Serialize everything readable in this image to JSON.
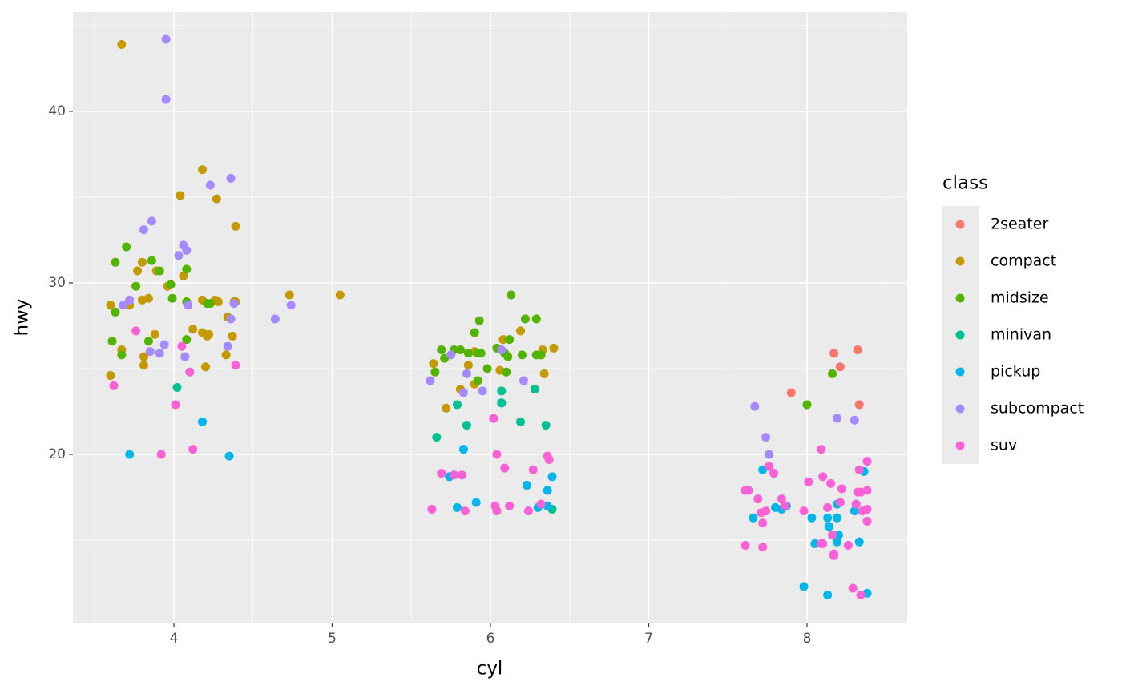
{
  "chart_data": {
    "type": "scatter",
    "x_label": "cyl",
    "y_label": "hwy",
    "legend_title": "class",
    "legend_position": "right",
    "grid": true,
    "xlim": [
      3.362,
      8.633
    ],
    "ylim": [
      10.19,
      45.79
    ],
    "xticks": [
      4,
      5,
      6,
      7,
      8
    ],
    "yticks": [
      20,
      30,
      40
    ],
    "xminor_ticks": [
      3.5,
      4.5,
      5.5,
      6.5,
      7.5,
      8.5
    ],
    "yminor_ticks": [
      15,
      25,
      35,
      45
    ],
    "series": [
      {
        "name": "2seater",
        "color": "#F8766D",
        "x": [
          7.9,
          8.17,
          8.21,
          8.32,
          8.33
        ],
        "values": [
          23.6,
          25.9,
          25.1,
          26.1,
          22.9
        ]
      },
      {
        "name": "compact",
        "color": "#C49A00",
        "x": [
          3.67,
          3.6,
          3.6,
          3.67,
          3.72,
          3.77,
          3.8,
          3.8,
          3.81,
          3.81,
          3.84,
          3.88,
          3.89,
          3.96,
          4.04,
          4.06,
          4.12,
          4.18,
          4.18,
          4.18,
          4.2,
          4.21,
          4.22,
          4.26,
          4.27,
          4.28,
          4.33,
          4.34,
          4.37,
          4.38,
          4.39,
          4.39,
          4.73,
          5.05,
          5.64,
          5.72,
          5.81,
          5.86,
          5.9,
          5.9,
          6.06,
          6.08,
          6.19,
          6.33,
          6.34,
          6.4
        ],
        "values": [
          43.9,
          28.7,
          24.6,
          26.1,
          28.7,
          30.7,
          31.2,
          29.0,
          25.7,
          25.2,
          29.1,
          27.0,
          30.7,
          29.8,
          35.1,
          30.4,
          27.3,
          36.6,
          29.0,
          27.1,
          25.1,
          26.9,
          27.0,
          29.0,
          34.9,
          28.9,
          25.8,
          28.0,
          26.9,
          28.9,
          33.3,
          28.9,
          29.3,
          29.3,
          25.3,
          22.7,
          23.8,
          25.2,
          24.1,
          26.0,
          24.9,
          26.7,
          27.2,
          26.1,
          24.7,
          26.2
        ]
      },
      {
        "name": "midsize",
        "color": "#53B400",
        "x": [
          3.63,
          3.61,
          3.63,
          3.67,
          3.7,
          3.76,
          3.84,
          3.86,
          3.91,
          3.98,
          3.99,
          4.08,
          4.08,
          4.08,
          4.21,
          4.23,
          5.65,
          5.69,
          5.71,
          5.77,
          5.81,
          5.86,
          5.9,
          5.92,
          5.92,
          5.93,
          5.94,
          5.98,
          6.04,
          6.09,
          6.1,
          6.11,
          6.12,
          6.13,
          6.2,
          6.22,
          6.29,
          6.29,
          6.32,
          8.0,
          8.16
        ],
        "values": [
          31.2,
          26.6,
          28.3,
          25.8,
          32.1,
          29.8,
          26.6,
          31.3,
          30.7,
          29.9,
          29.1,
          30.8,
          26.7,
          28.9,
          28.8,
          28.8,
          24.8,
          26.1,
          25.6,
          26.1,
          26.1,
          25.9,
          27.1,
          25.9,
          24.3,
          27.8,
          25.9,
          25.0,
          26.2,
          25.9,
          24.8,
          25.7,
          26.7,
          29.3,
          25.8,
          27.9,
          27.9,
          25.8,
          25.8,
          22.9,
          24.7
        ]
      },
      {
        "name": "minivan",
        "color": "#00C094",
        "x": [
          4.02,
          5.66,
          5.79,
          5.85,
          6.07,
          6.07,
          6.19,
          6.28,
          6.35,
          6.39
        ],
        "values": [
          23.9,
          21.0,
          22.9,
          21.7,
          23.0,
          23.7,
          21.9,
          23.8,
          21.7,
          16.8
        ]
      },
      {
        "name": "pickup",
        "color": "#00B6EB",
        "x": [
          3.72,
          4.18,
          4.35,
          5.74,
          5.79,
          5.83,
          5.91,
          6.23,
          6.3,
          6.36,
          6.36,
          6.39,
          7.66,
          7.72,
          7.8,
          7.84,
          7.87,
          7.98,
          8.03,
          8.05,
          8.13,
          8.13,
          8.14,
          8.19,
          8.19,
          8.19,
          8.2,
          8.3,
          8.31,
          8.33,
          8.36,
          8.38
        ],
        "values": [
          20.0,
          21.9,
          19.9,
          18.7,
          16.9,
          20.3,
          17.2,
          18.2,
          16.9,
          17.9,
          17.0,
          18.7,
          16.3,
          19.1,
          16.9,
          16.8,
          17.0,
          12.3,
          16.3,
          14.8,
          11.8,
          16.3,
          15.8,
          17.1,
          16.3,
          14.9,
          15.3,
          16.7,
          17.1,
          14.9,
          19.0,
          11.9
        ]
      },
      {
        "name": "subcompact",
        "color": "#A58AFF",
        "x": [
          3.95,
          3.95,
          3.68,
          3.72,
          3.81,
          3.86,
          3.85,
          3.91,
          3.94,
          4.03,
          4.06,
          4.08,
          4.07,
          4.09,
          4.23,
          4.34,
          4.36,
          4.36,
          4.38,
          4.64,
          4.74,
          5.62,
          5.75,
          5.83,
          5.85,
          5.95,
          6.07,
          6.21,
          7.67,
          7.74,
          7.76,
          8.19,
          8.3
        ],
        "values": [
          44.2,
          40.7,
          28.7,
          29.0,
          33.1,
          33.6,
          26.0,
          25.9,
          26.4,
          31.6,
          32.2,
          31.9,
          25.7,
          28.7,
          35.7,
          26.3,
          36.1,
          27.9,
          28.8,
          27.9,
          28.7,
          24.3,
          25.8,
          23.6,
          24.7,
          23.7,
          26.1,
          24.3,
          22.8,
          21.0,
          20.0,
          22.1,
          22.0
        ]
      },
      {
        "name": "suv",
        "color": "#FB61D7",
        "x": [
          3.62,
          3.76,
          3.92,
          4.01,
          4.05,
          4.1,
          4.12,
          4.39,
          5.63,
          5.69,
          5.77,
          5.82,
          5.84,
          6.02,
          6.03,
          6.04,
          6.04,
          6.09,
          6.12,
          6.24,
          6.27,
          6.32,
          6.36,
          6.37,
          7.61,
          7.63,
          7.61,
          7.69,
          7.71,
          7.72,
          7.72,
          7.74,
          7.76,
          7.79,
          7.84,
          7.86,
          7.98,
          8.01,
          8.09,
          8.09,
          8.1,
          8.1,
          8.13,
          8.15,
          8.16,
          8.17,
          8.17,
          8.21,
          8.22,
          8.26,
          8.29,
          8.31,
          8.32,
          8.33,
          8.34,
          8.34,
          8.35,
          8.38,
          8.38,
          8.38,
          8.38
        ],
        "values": [
          24.0,
          27.2,
          20.0,
          22.9,
          26.3,
          24.8,
          20.3,
          25.2,
          16.8,
          18.9,
          18.8,
          18.8,
          16.7,
          22.1,
          17.0,
          16.7,
          20.0,
          19.2,
          17.0,
          16.7,
          19.1,
          17.1,
          19.9,
          19.7,
          17.9,
          17.9,
          14.7,
          17.4,
          16.6,
          16.0,
          14.6,
          16.7,
          19.3,
          18.9,
          17.4,
          17.0,
          16.7,
          18.4,
          14.8,
          20.3,
          18.7,
          14.8,
          16.9,
          18.3,
          15.3,
          14.2,
          14.1,
          17.2,
          18.0,
          14.7,
          12.2,
          17.1,
          17.8,
          19.1,
          11.8,
          17.8,
          16.7,
          17.9,
          19.6,
          16.1,
          16.8
        ]
      }
    ]
  }
}
